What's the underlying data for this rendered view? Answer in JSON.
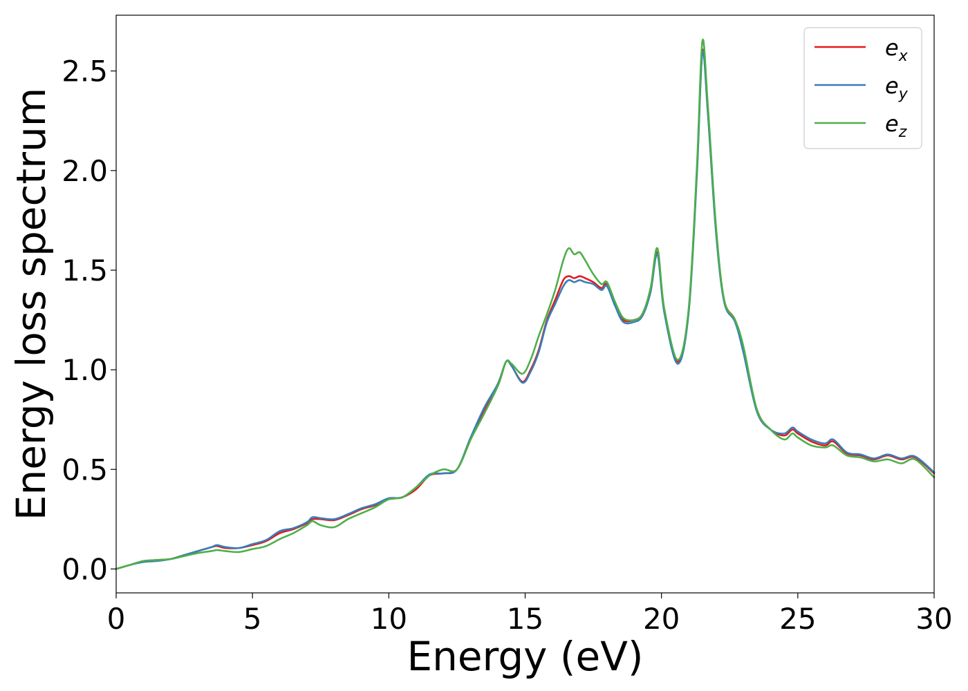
{
  "chart_data": {
    "type": "line",
    "title": "",
    "xlabel": "Energy (eV)",
    "ylabel": "Energy loss spectrum",
    "xlim": [
      0,
      30
    ],
    "ylim": [
      -0.12,
      2.78
    ],
    "xticks": [
      0,
      5,
      10,
      15,
      20,
      25,
      30
    ],
    "xtick_labels": [
      "0",
      "5",
      "10",
      "15",
      "20",
      "25",
      "30"
    ],
    "yticks": [
      0.0,
      0.5,
      1.0,
      1.5,
      2.0,
      2.5
    ],
    "ytick_labels": [
      "0.0",
      "0.5",
      "1.0",
      "1.5",
      "2.0",
      "2.5"
    ],
    "grid": false,
    "legend_position": "top-right",
    "series": [
      {
        "name": "e_x",
        "legend_base": "e",
        "legend_sub": "x",
        "color": "#e41a1c",
        "x": [
          0,
          0.5,
          1,
          1.5,
          2,
          2.5,
          3,
          3.5,
          3.7,
          4,
          4.5,
          5,
          5.5,
          6,
          6.5,
          7,
          7.2,
          7.5,
          8,
          8.5,
          9,
          9.5,
          10,
          10.5,
          11,
          11.5,
          12,
          12.5,
          13,
          13.5,
          14,
          14.3,
          14.5,
          14.9,
          15.2,
          15.5,
          15.8,
          16.1,
          16.4,
          16.6,
          16.8,
          17,
          17.2,
          17.5,
          17.8,
          18,
          18.3,
          18.6,
          19,
          19.3,
          19.6,
          19.85,
          20.1,
          20.6,
          21,
          21.3,
          21.5,
          21.7,
          22,
          22.3,
          22.7,
          23,
          23.5,
          24,
          24.5,
          24.8,
          25,
          25.5,
          26,
          26.3,
          26.8,
          27.3,
          27.8,
          28.3,
          28.8,
          29.3,
          30
        ],
        "y": [
          0.0,
          0.02,
          0.04,
          0.045,
          0.05,
          0.07,
          0.09,
          0.11,
          0.115,
          0.105,
          0.105,
          0.12,
          0.14,
          0.18,
          0.2,
          0.23,
          0.25,
          0.25,
          0.245,
          0.27,
          0.3,
          0.32,
          0.35,
          0.36,
          0.4,
          0.47,
          0.48,
          0.5,
          0.65,
          0.8,
          0.92,
          1.04,
          1.02,
          0.94,
          1.0,
          1.1,
          1.25,
          1.35,
          1.45,
          1.47,
          1.46,
          1.47,
          1.46,
          1.44,
          1.41,
          1.43,
          1.33,
          1.25,
          1.25,
          1.28,
          1.4,
          1.59,
          1.3,
          1.04,
          1.3,
          2.0,
          2.6,
          2.3,
          1.7,
          1.35,
          1.25,
          1.1,
          0.8,
          0.7,
          0.67,
          0.7,
          0.68,
          0.64,
          0.62,
          0.64,
          0.58,
          0.57,
          0.55,
          0.57,
          0.55,
          0.56,
          0.48
        ]
      },
      {
        "name": "e_y",
        "legend_base": "e",
        "legend_sub": "y",
        "color": "#377eb8",
        "x": [
          0,
          0.5,
          1,
          1.5,
          2,
          2.5,
          3,
          3.5,
          3.7,
          4,
          4.5,
          5,
          5.5,
          6,
          6.5,
          7,
          7.2,
          7.5,
          8,
          8.5,
          9,
          9.5,
          10,
          10.5,
          11,
          11.5,
          12,
          12.5,
          13,
          13.5,
          14,
          14.3,
          14.5,
          14.9,
          15.2,
          15.5,
          15.8,
          16.1,
          16.4,
          16.6,
          16.8,
          17,
          17.2,
          17.5,
          17.8,
          18,
          18.3,
          18.6,
          19,
          19.3,
          19.6,
          19.85,
          20.1,
          20.6,
          21,
          21.3,
          21.5,
          21.7,
          22,
          22.3,
          22.7,
          23,
          23.5,
          24,
          24.5,
          24.8,
          25,
          25.5,
          26,
          26.3,
          26.8,
          27.3,
          27.8,
          28.3,
          28.8,
          29.3,
          30
        ],
        "y": [
          0.0,
          0.02,
          0.035,
          0.04,
          0.05,
          0.07,
          0.09,
          0.11,
          0.12,
          0.11,
          0.105,
          0.125,
          0.145,
          0.19,
          0.205,
          0.235,
          0.26,
          0.255,
          0.25,
          0.275,
          0.305,
          0.325,
          0.355,
          0.36,
          0.41,
          0.475,
          0.48,
          0.5,
          0.66,
          0.81,
          0.93,
          1.04,
          1.02,
          0.935,
          0.99,
          1.09,
          1.24,
          1.33,
          1.42,
          1.45,
          1.44,
          1.45,
          1.44,
          1.43,
          1.4,
          1.42,
          1.32,
          1.24,
          1.24,
          1.27,
          1.39,
          1.58,
          1.29,
          1.03,
          1.29,
          1.98,
          2.59,
          2.29,
          1.69,
          1.34,
          1.24,
          1.09,
          0.79,
          0.7,
          0.68,
          0.71,
          0.69,
          0.65,
          0.63,
          0.65,
          0.585,
          0.575,
          0.555,
          0.575,
          0.555,
          0.565,
          0.485
        ]
      },
      {
        "name": "e_z",
        "legend_base": "e",
        "legend_sub": "z",
        "color": "#4daf4a",
        "x": [
          0,
          0.5,
          1,
          1.5,
          2,
          2.5,
          3,
          3.5,
          3.7,
          4,
          4.5,
          5,
          5.5,
          6,
          6.5,
          7,
          7.2,
          7.5,
          8,
          8.5,
          9,
          9.5,
          10,
          10.5,
          11,
          11.5,
          12,
          12.5,
          13,
          13.5,
          14,
          14.3,
          14.5,
          14.9,
          15.2,
          15.5,
          15.8,
          16.1,
          16.4,
          16.6,
          16.8,
          17,
          17.2,
          17.5,
          17.8,
          18,
          18.3,
          18.6,
          19,
          19.3,
          19.6,
          19.85,
          20.1,
          20.6,
          21,
          21.3,
          21.5,
          21.7,
          22,
          22.3,
          22.7,
          23,
          23.5,
          24,
          24.5,
          24.8,
          25,
          25.5,
          26,
          26.3,
          26.8,
          27.3,
          27.8,
          28.3,
          28.8,
          29.3,
          30
        ],
        "y": [
          0.0,
          0.02,
          0.04,
          0.045,
          0.05,
          0.065,
          0.08,
          0.09,
          0.095,
          0.09,
          0.085,
          0.1,
          0.115,
          0.15,
          0.18,
          0.22,
          0.24,
          0.22,
          0.21,
          0.25,
          0.28,
          0.31,
          0.35,
          0.36,
          0.41,
          0.47,
          0.5,
          0.5,
          0.65,
          0.78,
          0.92,
          1.04,
          1.03,
          0.98,
          1.05,
          1.17,
          1.28,
          1.4,
          1.55,
          1.61,
          1.58,
          1.59,
          1.55,
          1.48,
          1.43,
          1.44,
          1.34,
          1.26,
          1.25,
          1.28,
          1.41,
          1.61,
          1.31,
          1.05,
          1.31,
          2.02,
          2.65,
          2.33,
          1.72,
          1.35,
          1.25,
          1.12,
          0.8,
          0.7,
          0.65,
          0.68,
          0.66,
          0.62,
          0.61,
          0.62,
          0.57,
          0.56,
          0.54,
          0.55,
          0.53,
          0.55,
          0.46
        ]
      }
    ]
  }
}
